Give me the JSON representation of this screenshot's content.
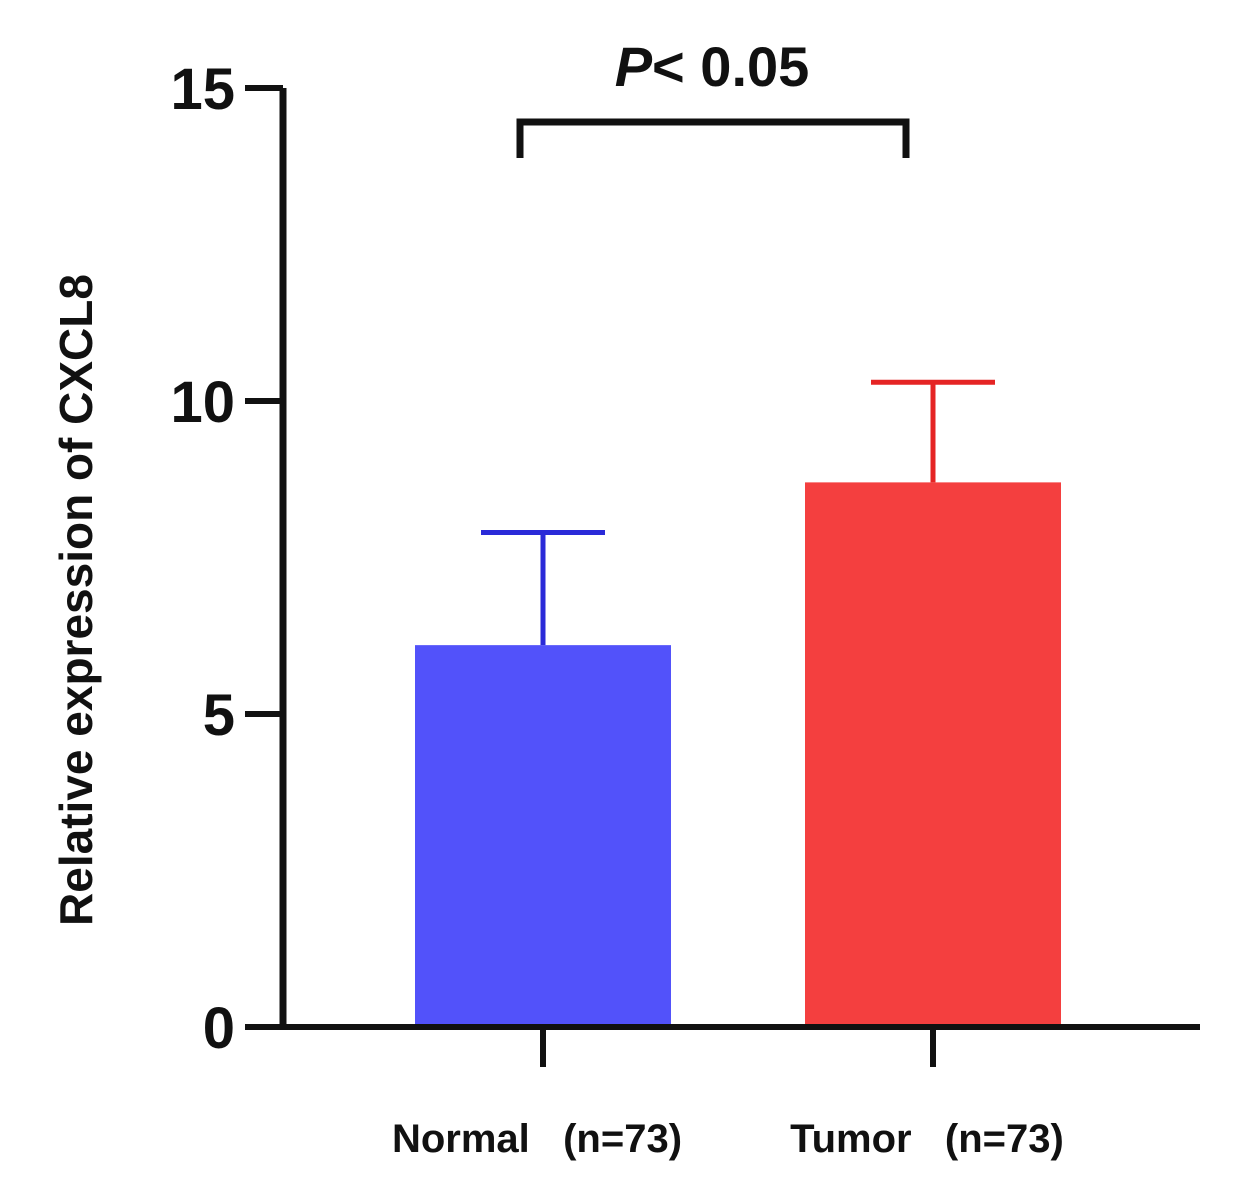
{
  "chart_data": {
    "type": "bar",
    "title": "",
    "xlabel": "",
    "ylabel": "Relative expression of CXCL8",
    "ylim": [
      0,
      15
    ],
    "yticks": [
      0,
      5,
      10,
      15
    ],
    "ytick_labels": [
      "0",
      "5",
      "10",
      "15"
    ],
    "grid": false,
    "categories": [
      "Normal   (n=73)",
      "Tumor   (n=73)"
    ],
    "category_names": [
      "Normal",
      "Tumor"
    ],
    "category_counts": [
      "(n=73)",
      "(n=73)"
    ],
    "values": [
      6.1,
      8.7
    ],
    "errors": [
      1.8,
      1.6
    ],
    "colors": [
      "#5252fa",
      "#f43f3f"
    ],
    "error_colors": [
      "#2a2ad8",
      "#e52424"
    ],
    "annotation": {
      "p_symbol": "P",
      "text": "< 0.05",
      "from": 0,
      "to": 1
    }
  }
}
